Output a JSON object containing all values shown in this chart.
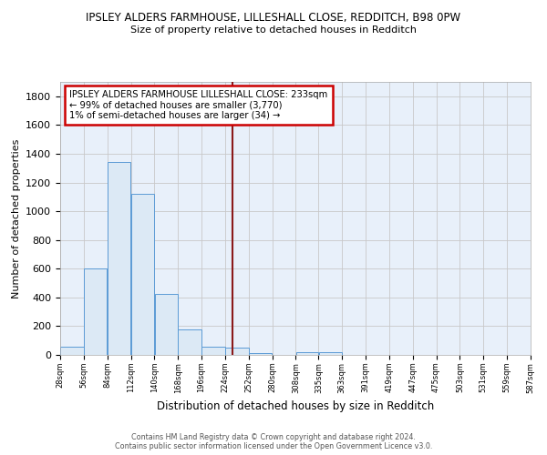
{
  "title": "IPSLEY ALDERS FARMHOUSE, LILLESHALL CLOSE, REDDITCH, B98 0PW",
  "subtitle": "Size of property relative to detached houses in Redditch",
  "xlabel": "Distribution of detached houses by size in Redditch",
  "ylabel": "Number of detached properties",
  "bar_edges": [
    28,
    56,
    84,
    112,
    140,
    168,
    196,
    224,
    252,
    280,
    308,
    335,
    363,
    391,
    419,
    447,
    475,
    503,
    531,
    559,
    587
  ],
  "bar_values": [
    60,
    600,
    1340,
    1120,
    425,
    175,
    60,
    50,
    15,
    0,
    20,
    20,
    0,
    0,
    0,
    0,
    0,
    0,
    0,
    0
  ],
  "bar_color": "#dce9f5",
  "bar_edge_color": "#5b9bd5",
  "grid_color": "#c8c8c8",
  "bg_color": "#e8f0fa",
  "vline_x": 233,
  "vline_color": "#8b1a1a",
  "annotation_title": "IPSLEY ALDERS FARMHOUSE LILLESHALL CLOSE: 233sqm",
  "annotation_line1": "← 99% of detached houses are smaller (3,770)",
  "annotation_line2": "1% of semi-detached houses are larger (34) →",
  "annotation_box_color": "#ffffff",
  "annotation_box_edge_color": "#cc0000",
  "footer_line1": "Contains HM Land Registry data © Crown copyright and database right 2024.",
  "footer_line2": "Contains public sector information licensed under the Open Government Licence v3.0.",
  "ylim": [
    0,
    1900
  ],
  "yticks": [
    0,
    200,
    400,
    600,
    800,
    1000,
    1200,
    1400,
    1600,
    1800
  ],
  "tick_labels": [
    "28sqm",
    "56sqm",
    "84sqm",
    "112sqm",
    "140sqm",
    "168sqm",
    "196sqm",
    "224sqm",
    "252sqm",
    "280sqm",
    "308sqm",
    "335sqm",
    "363sqm",
    "391sqm",
    "419sqm",
    "447sqm",
    "475sqm",
    "503sqm",
    "531sqm",
    "559sqm",
    "587sqm"
  ]
}
